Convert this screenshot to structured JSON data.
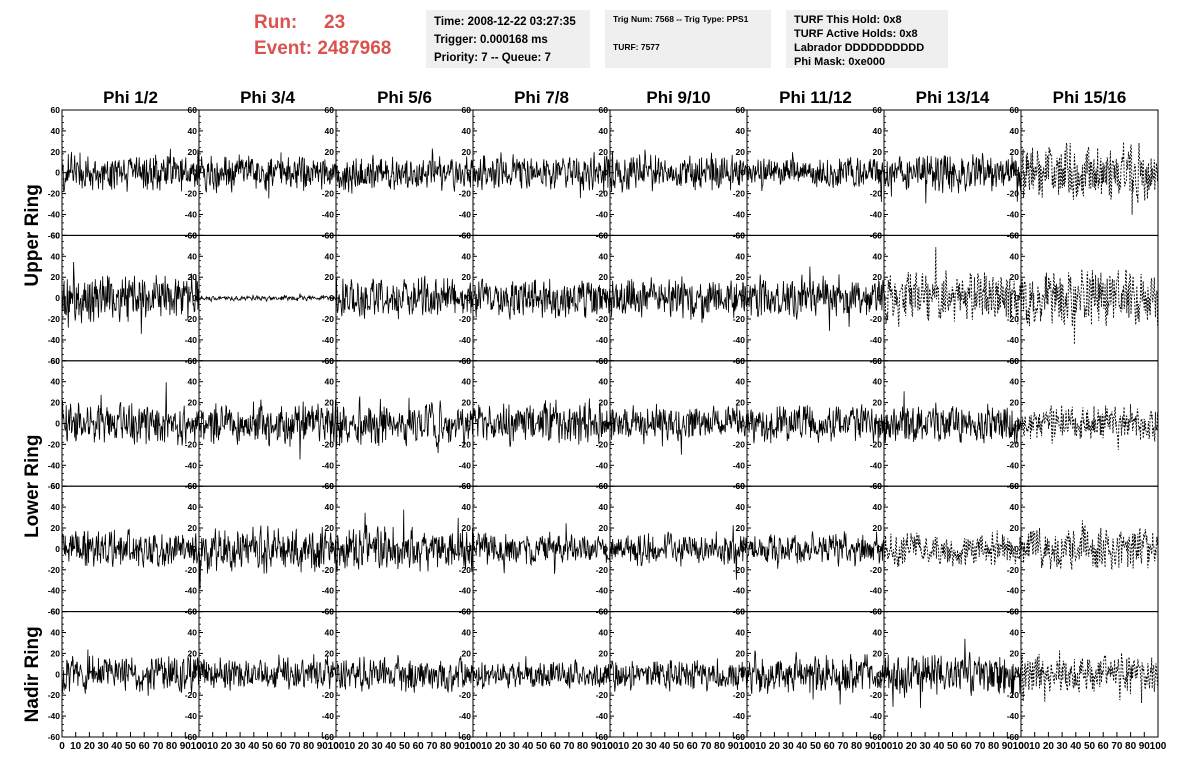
{
  "header": {
    "run_label": "Run:",
    "run_value": "23",
    "event_label": "Event:",
    "event_value": "2487968",
    "time_line": "Time: 2008-12-22 03:27:35",
    "trigger_line": "Trigger: 0.000168 ms",
    "priority_line": "Priority: 7 -- Queue: 7",
    "trig_num_line": "Trig Num: 7568 -- Trig Type: PPS1",
    "turf_line": "TURF: 7577",
    "turf_hold_line": "TURF This Hold: 0x8",
    "turf_active_line": "TURF Active Holds: 0x8",
    "labrador_line": "Labrador DDDDDDDDDD",
    "phi_mask_line": "Phi Mask: 0xe000"
  },
  "colors": {
    "accent": "#d9534f",
    "info_box_bg": "#efefef",
    "trace": "#000000"
  },
  "chart_data": {
    "type": "line",
    "column_titles": [
      "Phi 1/2",
      "Phi 3/4",
      "Phi 5/6",
      "Phi 7/8",
      "Phi 9/10",
      "Phi 11/12",
      "Phi 13/14",
      "Phi 15/16"
    ],
    "ring_labels": [
      "Upper Ring",
      "Lower Ring",
      "Nadir Ring"
    ],
    "ring_row_spans": [
      [
        0,
        1
      ],
      [
        2,
        3
      ],
      [
        4,
        4
      ]
    ],
    "rows": 5,
    "xlim": [
      0,
      100
    ],
    "ylim": [
      -60,
      60
    ],
    "x_ticks": [
      0,
      10,
      20,
      30,
      40,
      50,
      60,
      70,
      80,
      90,
      100
    ],
    "y_ticks": [
      -60,
      -40,
      -20,
      0,
      20,
      40,
      60
    ],
    "samples_per_trace": 260,
    "trace_amplitudes": [
      [
        14,
        13,
        13,
        13,
        14,
        11,
        14,
        20
      ],
      [
        18,
        2,
        15,
        14,
        14,
        15,
        18,
        21
      ],
      [
        15,
        16,
        16,
        16,
        13,
        14,
        15,
        13
      ],
      [
        14,
        17,
        17,
        12,
        12,
        12,
        12,
        15
      ],
      [
        14,
        12,
        13,
        10,
        12,
        14,
        15,
        14
      ]
    ],
    "dashed_traces": [
      [
        0,
        7
      ],
      [
        1,
        6
      ],
      [
        1,
        7
      ],
      [
        2,
        7
      ],
      [
        3,
        6
      ],
      [
        3,
        7
      ],
      [
        4,
        7
      ]
    ]
  }
}
